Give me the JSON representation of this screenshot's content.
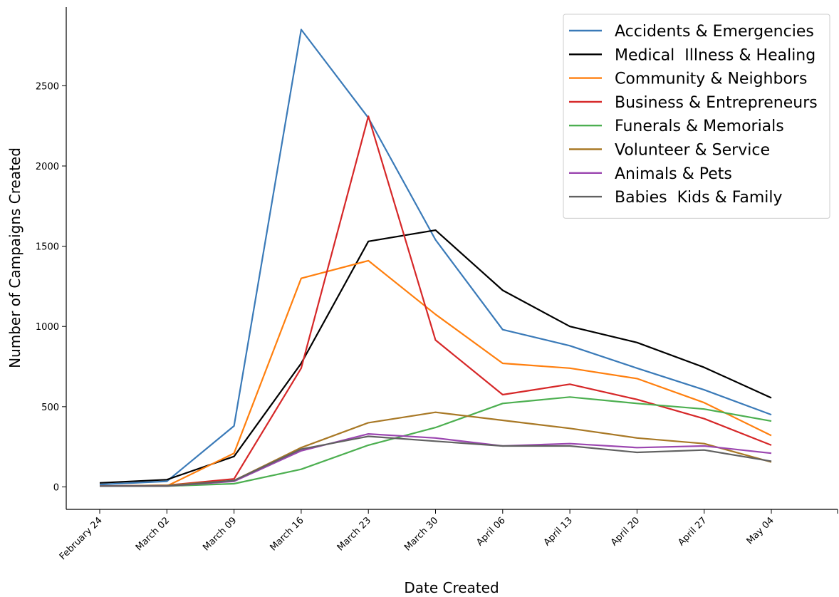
{
  "chart_data": {
    "type": "line",
    "title": "",
    "xlabel": "Date Created",
    "ylabel": "Number of Campaigns Created",
    "categories": [
      "February 24",
      "March 02",
      "March 09",
      "March 16",
      "March 23",
      "March 30",
      "April 06",
      "April 13",
      "April 20",
      "April 27",
      "May 04"
    ],
    "y_ticks": [
      0,
      500,
      1000,
      1500,
      2000,
      2500
    ],
    "ylim": [
      -140,
      2990
    ],
    "grid": false,
    "legend_position": "top-right",
    "series": [
      {
        "name": "Accidents & Emergencies",
        "color": "#3a7ab8",
        "values": [
          15,
          35,
          380,
          2850,
          2300,
          1540,
          980,
          880,
          740,
          605,
          450
        ]
      },
      {
        "name": "Medical  Illness & Healing",
        "color": "#000000",
        "values": [
          25,
          45,
          190,
          770,
          1530,
          1600,
          1225,
          1000,
          900,
          745,
          555
        ]
      },
      {
        "name": "Community & Neighbors",
        "color": "#ff7f0e",
        "values": [
          5,
          5,
          210,
          1300,
          1410,
          1075,
          770,
          740,
          675,
          525,
          320
        ]
      },
      {
        "name": "Business & Entrepreneurs",
        "color": "#d62728",
        "values": [
          5,
          10,
          50,
          740,
          2310,
          915,
          575,
          640,
          545,
          425,
          260
        ]
      },
      {
        "name": "Funerals & Memorials",
        "color": "#4caf50",
        "values": [
          5,
          5,
          20,
          110,
          260,
          370,
          520,
          560,
          520,
          485,
          410
        ]
      },
      {
        "name": "Volunteer & Service",
        "color": "#a87825",
        "values": [
          5,
          10,
          40,
          245,
          400,
          465,
          415,
          365,
          305,
          270,
          155
        ]
      },
      {
        "name": "Animals & Pets",
        "color": "#9b46b0",
        "values": [
          5,
          5,
          35,
          225,
          330,
          305,
          255,
          270,
          245,
          255,
          210
        ]
      },
      {
        "name": "Babies  Kids & Family",
        "color": "#616161",
        "values": [
          5,
          5,
          40,
          235,
          315,
          285,
          255,
          255,
          215,
          230,
          160
        ]
      }
    ]
  }
}
